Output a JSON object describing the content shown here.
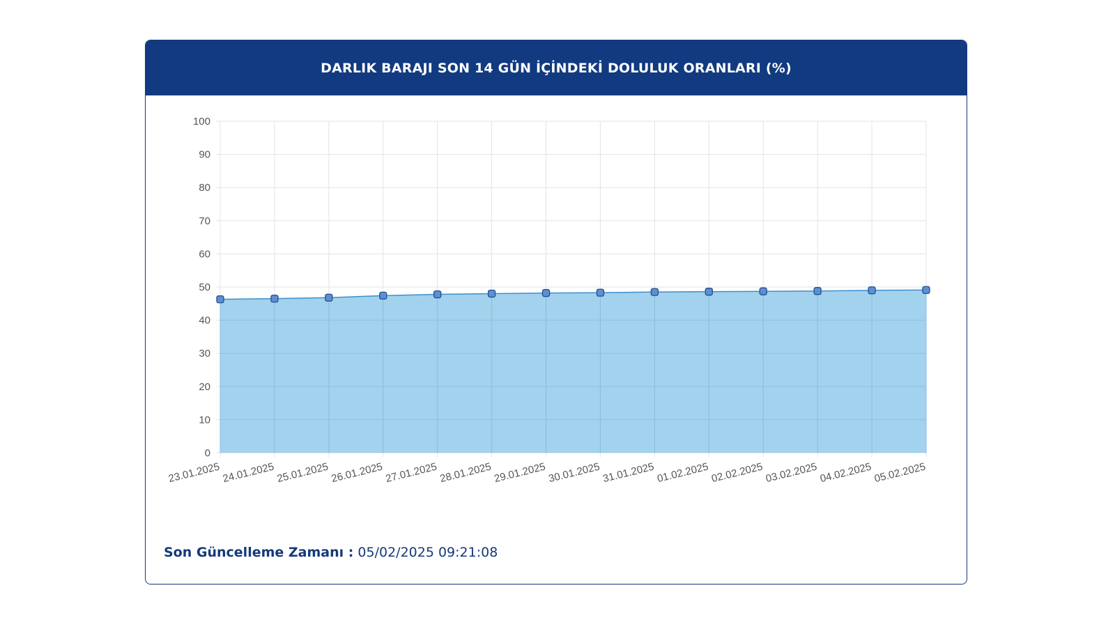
{
  "header": {
    "title": "DARLIK BARAJI SON 14 GÜN İÇİNDEKİ DOLULUK ORANLARI (%)"
  },
  "footer": {
    "label": "Son Güncelleme Zamanı :",
    "value": "05/02/2025 09:21:08"
  },
  "colors": {
    "header_bg": "#113a80",
    "area_fill": "#9dd0ec",
    "line": "#3d8fcb",
    "point_fill": "#5f8fcf",
    "point_stroke": "#1f4e93",
    "text_dark": "#15397a"
  },
  "chart_data": {
    "type": "area",
    "title": "DARLIK BARAJI SON 14 GÜN İÇİNDEKİ DOLULUK ORANLARI (%)",
    "categories": [
      "23.01.2025",
      "24.01.2025",
      "25.01.2025",
      "26.01.2025",
      "27.01.2025",
      "28.01.2025",
      "29.01.2025",
      "30.01.2025",
      "31.01.2025",
      "01.02.2025",
      "02.02.2025",
      "03.02.2025",
      "04.02.2025",
      "05.02.2025"
    ],
    "values": [
      46.3,
      46.5,
      46.8,
      47.4,
      47.8,
      48.0,
      48.2,
      48.3,
      48.5,
      48.6,
      48.7,
      48.8,
      49.0,
      49.1
    ],
    "yticks": [
      0,
      10,
      20,
      30,
      40,
      50,
      60,
      70,
      80,
      90,
      100
    ],
    "ylim": [
      0,
      100
    ],
    "grid": true,
    "xlabel": "",
    "ylabel": ""
  }
}
